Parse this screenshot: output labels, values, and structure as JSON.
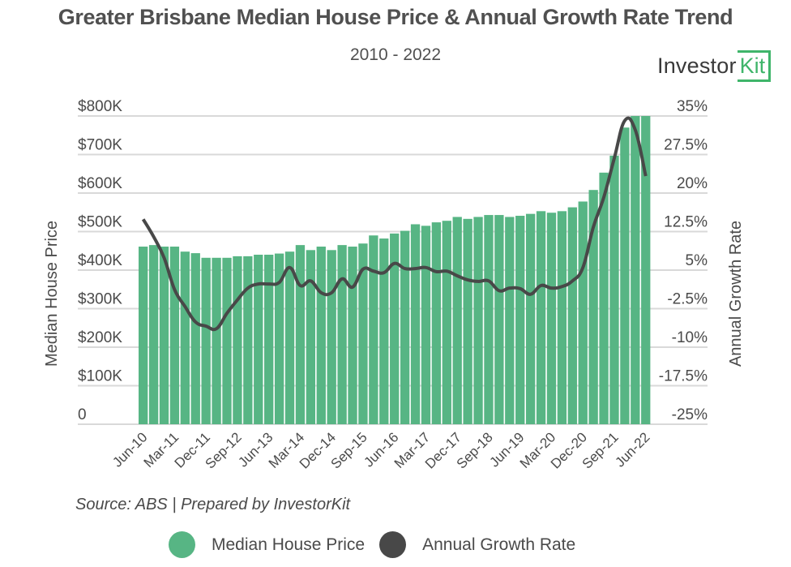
{
  "header": {
    "title": "Greater Brisbane Median House Price & Annual Growth Rate Trend",
    "subtitle": "2010 - 2022",
    "logo_text": "Investor",
    "logo_kit": "Kit"
  },
  "footer": {
    "source": "Source: ABS | Prepared by InvestorKit"
  },
  "colors": {
    "bar": "#57b584",
    "line": "#484848",
    "grid": "#d9d9d9",
    "logo_accent": "#3fb56a"
  },
  "chart_data": {
    "type": "bar+line",
    "title": "Greater Brisbane Median House Price & Annual Growth Rate Trend",
    "subtitle": "2010 - 2022",
    "xlabel": "",
    "ylabel": "Median House Price",
    "y2label": "Annual Growth Rate",
    "grid": true,
    "legend_position": "bottom",
    "y_axis": {
      "min": 0,
      "max": 800000,
      "step": 100000,
      "ticks": [
        "0",
        "$100K",
        "$200K",
        "$300K",
        "$400K",
        "$500K",
        "$600K",
        "$700K",
        "$800K"
      ]
    },
    "y2_axis": {
      "min": -25,
      "max": 35,
      "step": 7.5,
      "ticks": [
        "-25%",
        "-17.5%",
        "-10%",
        "-2.5%",
        "5%",
        "12.5%",
        "20%",
        "27.5%",
        "35%"
      ]
    },
    "x_tick_labels": [
      "Jun-10",
      "Mar-11",
      "Dec-11",
      "Sep-12",
      "Jun-13",
      "Mar-14",
      "Dec-14",
      "Sep-15",
      "Jun-16",
      "Mar-17",
      "Dec-17",
      "Sep-18",
      "Jun-19",
      "Mar-20",
      "Dec-20",
      "Sep-21",
      "Jun-22"
    ],
    "x_tick_every": 3,
    "categories": [
      "Jun-10",
      "Sep-10",
      "Dec-10",
      "Mar-11",
      "Jun-11",
      "Sep-11",
      "Dec-11",
      "Mar-12",
      "Jun-12",
      "Sep-12",
      "Dec-12",
      "Mar-13",
      "Jun-13",
      "Sep-13",
      "Dec-13",
      "Mar-14",
      "Jun-14",
      "Sep-14",
      "Dec-14",
      "Mar-15",
      "Jun-15",
      "Sep-15",
      "Dec-15",
      "Mar-16",
      "Jun-16",
      "Sep-16",
      "Dec-16",
      "Mar-17",
      "Jun-17",
      "Sep-17",
      "Dec-17",
      "Mar-18",
      "Jun-18",
      "Sep-18",
      "Dec-18",
      "Mar-19",
      "Jun-19",
      "Sep-19",
      "Dec-19",
      "Mar-20",
      "Jun-20",
      "Sep-20",
      "Dec-20",
      "Mar-21",
      "Jun-21",
      "Sep-21",
      "Dec-21",
      "Mar-22",
      "Jun-22"
    ],
    "series": [
      {
        "name": "Median House Price",
        "type": "bar",
        "axis": "left",
        "values": [
          461000,
          465000,
          461000,
          461000,
          448000,
          444000,
          432000,
          432000,
          432000,
          436000,
          436000,
          440000,
          440000,
          443000,
          448000,
          465000,
          452000,
          461000,
          452000,
          465000,
          461000,
          469000,
          490000,
          482000,
          495000,
          502000,
          519000,
          515000,
          524000,
          528000,
          538000,
          533000,
          538000,
          543000,
          543000,
          538000,
          541000,
          546000,
          553000,
          549000,
          553000,
          563000,
          578000,
          608000,
          653000,
          697000,
          770000,
          800000,
          800000
        ]
      },
      {
        "name": "Annual Growth Rate",
        "type": "line",
        "axis": "right",
        "values": [
          14.9,
          11.5,
          7.4,
          1.2,
          -2.1,
          -5.1,
          -5.9,
          -6.4,
          -3.4,
          -0.8,
          1.5,
          2.3,
          2.3,
          2.6,
          5.5,
          2.0,
          2.9,
          0.6,
          0.6,
          3.3,
          1.7,
          5.2,
          4.8,
          4.5,
          6.3,
          5.3,
          5.3,
          5.5,
          4.7,
          4.8,
          3.9,
          3.1,
          2.8,
          2.9,
          1.0,
          1.5,
          1.4,
          0.3,
          2.0,
          1.5,
          1.8,
          2.9,
          5.5,
          13.4,
          19.2,
          26.8,
          34.1,
          32.3,
          23.3
        ]
      }
    ]
  }
}
